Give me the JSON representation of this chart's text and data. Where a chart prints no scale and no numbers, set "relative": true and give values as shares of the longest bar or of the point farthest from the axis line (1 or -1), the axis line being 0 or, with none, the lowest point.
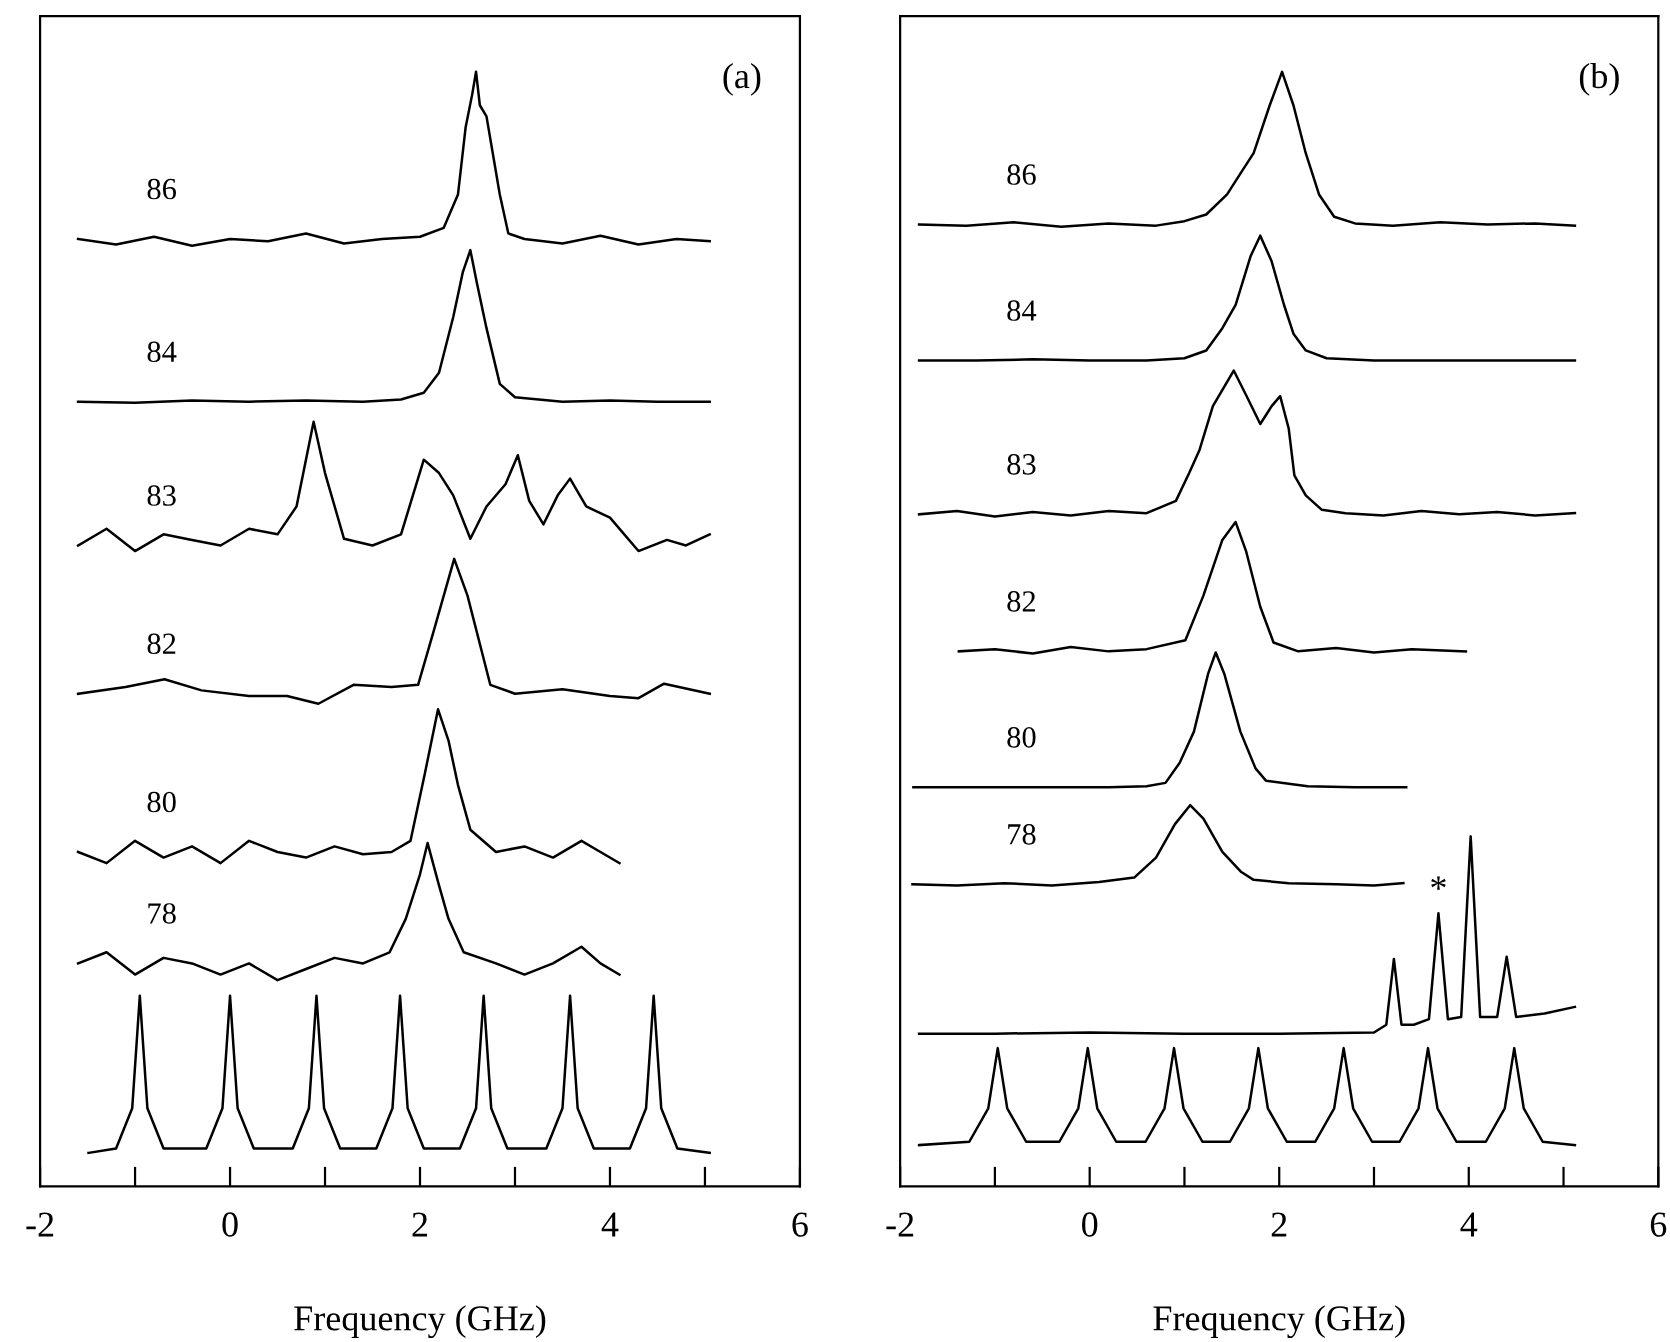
{
  "chart_data": [
    {
      "type": "line",
      "relative": true,
      "xlabel": "Frequency (GHz)",
      "xlim": [
        -2,
        6
      ],
      "xticks": [
        -2,
        {
          "value": -1,
          "label": null
        },
        0,
        {
          "value": 1,
          "label": null
        },
        2,
        {
          "value": 3,
          "label": null
        },
        4,
        {
          "value": 5,
          "label": null
        },
        6
      ],
      "tick_labels": "x",
      "grid": false,
      "legend": false,
      "marker": "none",
      "line_style": "solid",
      "annotations": [
        "(a)"
      ],
      "series": [
        {
          "name": "86",
          "color": "#000000",
          "x": [
            -1.6,
            -1.2,
            -0.8,
            -0.4,
            0,
            0.4,
            0.8,
            1.2,
            1.6,
            2.0,
            2.25,
            2.35,
            2.4,
            2.48,
            2.55,
            2.59,
            2.63,
            2.7,
            2.78,
            2.84,
            2.93,
            3.1,
            3.5,
            3.9,
            4.3,
            4.7,
            5.05
          ],
          "values": [
            0.85,
            0.845,
            0.852,
            0.844,
            0.85,
            0.848,
            0.855,
            0.846,
            0.85,
            0.852,
            0.86,
            0.88,
            0.89,
            0.95,
            0.98,
            1.0,
            0.97,
            0.96,
            0.92,
            0.89,
            0.855,
            0.85,
            0.846,
            0.853,
            0.845,
            0.85,
            0.848
          ]
        },
        {
          "name": "84",
          "color": "#000000",
          "x": [
            -1.6,
            -1.0,
            -0.4,
            0.2,
            0.8,
            1.4,
            1.8,
            2.04,
            2.2,
            2.35,
            2.45,
            2.53,
            2.6,
            2.7,
            2.84,
            3.0,
            3.5,
            4.0,
            4.5,
            5.05
          ],
          "values": [
            0.704,
            0.703,
            0.705,
            0.704,
            0.705,
            0.704,
            0.706,
            0.712,
            0.73,
            0.78,
            0.82,
            0.84,
            0.81,
            0.77,
            0.72,
            0.708,
            0.704,
            0.705,
            0.704,
            0.704
          ]
        },
        {
          "name": "83",
          "color": "#000000",
          "x": [
            -1.6,
            -1.3,
            -1.0,
            -0.7,
            -0.4,
            -0.1,
            0.2,
            0.5,
            0.7,
            0.88,
            1.0,
            1.2,
            1.5,
            1.8,
            2.04,
            2.2,
            2.35,
            2.53,
            2.7,
            2.9,
            3.03,
            3.15,
            3.3,
            3.45,
            3.58,
            3.75,
            4.0,
            4.3,
            4.6,
            4.8,
            5.05
          ],
          "values": [
            0.575,
            0.59,
            0.57,
            0.585,
            0.58,
            0.575,
            0.59,
            0.585,
            0.61,
            0.686,
            0.64,
            0.581,
            0.575,
            0.585,
            0.652,
            0.64,
            0.62,
            0.581,
            0.61,
            0.63,
            0.656,
            0.615,
            0.594,
            0.62,
            0.635,
            0.61,
            0.6,
            0.57,
            0.58,
            0.575,
            0.585
          ]
        },
        {
          "name": "82",
          "color": "#000000",
          "x": [
            -1.6,
            -1.1,
            -0.69,
            -0.3,
            0.2,
            0.6,
            0.93,
            1.3,
            1.7,
            1.98,
            2.15,
            2.36,
            2.5,
            2.74,
            3.0,
            3.5,
            4.0,
            4.3,
            4.57,
            5.05
          ],
          "values": [
            0.442,
            0.448,
            0.455,
            0.445,
            0.44,
            0.44,
            0.433,
            0.45,
            0.448,
            0.45,
            0.5,
            0.563,
            0.53,
            0.45,
            0.442,
            0.446,
            0.44,
            0.438,
            0.451,
            0.442
          ]
        },
        {
          "name": "80",
          "color": "#000000",
          "x": [
            -1.6,
            -1.3,
            -1.0,
            -0.7,
            -0.4,
            -0.1,
            0.2,
            0.5,
            0.8,
            1.1,
            1.4,
            1.7,
            1.9,
            2.05,
            2.19,
            2.3,
            2.4,
            2.53,
            2.8,
            3.1,
            3.4,
            3.7,
            3.9,
            4.1
          ],
          "values": [
            0.3,
            0.29,
            0.31,
            0.295,
            0.305,
            0.29,
            0.31,
            0.3,
            0.295,
            0.305,
            0.298,
            0.3,
            0.31,
            0.37,
            0.428,
            0.4,
            0.36,
            0.32,
            0.3,
            0.305,
            0.295,
            0.31,
            0.3,
            0.29
          ]
        },
        {
          "name": "78",
          "color": "#000000",
          "x": [
            -1.6,
            -1.3,
            -1.0,
            -0.7,
            -0.4,
            -0.1,
            0.2,
            0.5,
            0.8,
            1.1,
            1.4,
            1.68,
            1.85,
            2.0,
            2.08,
            2.2,
            2.3,
            2.46,
            2.8,
            3.1,
            3.4,
            3.7,
            3.9,
            4.1
          ],
          "values": [
            0.2,
            0.21,
            0.19,
            0.205,
            0.2,
            0.19,
            0.2,
            0.185,
            0.195,
            0.205,
            0.2,
            0.21,
            0.24,
            0.28,
            0.308,
            0.27,
            0.24,
            0.21,
            0.2,
            0.19,
            0.2,
            0.215,
            0.2,
            0.19
          ]
        },
        {
          "color": "#000000",
          "x": [
            -1.49,
            -1.2,
            -1.03,
            -0.95,
            -0.87,
            -0.7,
            -0.25,
            -0.08,
            0,
            0.08,
            0.25,
            0.66,
            0.83,
            0.91,
            0.99,
            1.16,
            1.54,
            1.71,
            1.79,
            1.87,
            2.04,
            2.42,
            2.59,
            2.67,
            2.75,
            2.92,
            3.33,
            3.5,
            3.58,
            3.66,
            3.83,
            4.21,
            4.38,
            4.46,
            4.54,
            4.71,
            5.05
          ],
          "values": [
            0.03,
            0.034,
            0.07,
            0.171,
            0.07,
            0.034,
            0.034,
            0.07,
            0.171,
            0.07,
            0.034,
            0.034,
            0.07,
            0.171,
            0.07,
            0.034,
            0.034,
            0.07,
            0.171,
            0.07,
            0.034,
            0.034,
            0.07,
            0.171,
            0.07,
            0.034,
            0.034,
            0.07,
            0.171,
            0.07,
            0.034,
            0.034,
            0.07,
            0.171,
            0.07,
            0.034,
            0.03
          ]
        }
      ]
    },
    {
      "type": "line",
      "relative": true,
      "xlabel": "Frequency (GHz)",
      "xlim": [
        -2,
        6
      ],
      "xticks": [
        -2,
        {
          "value": -1,
          "label": null
        },
        0,
        {
          "value": 1,
          "label": null
        },
        2,
        {
          "value": 3,
          "label": null
        },
        4,
        {
          "value": 5,
          "label": null
        },
        6
      ],
      "tick_labels": "x",
      "grid": false,
      "legend": false,
      "marker": "none",
      "line_style": "solid",
      "annotations": [
        "(b)",
        {
          "text": "*",
          "x": 3.68,
          "y": 0.245
        }
      ],
      "series": [
        {
          "name": "86",
          "color": "#000000",
          "x": [
            -1.8,
            -1.3,
            -0.8,
            -0.3,
            0.2,
            0.7,
            1.0,
            1.23,
            1.45,
            1.6,
            1.73,
            1.9,
            2.03,
            2.15,
            2.28,
            2.42,
            2.58,
            2.8,
            3.2,
            3.7,
            4.2,
            4.7,
            5.12
          ],
          "values": [
            0.863,
            0.862,
            0.865,
            0.861,
            0.864,
            0.862,
            0.866,
            0.872,
            0.89,
            0.91,
            0.927,
            0.97,
            1.0,
            0.97,
            0.927,
            0.89,
            0.87,
            0.864,
            0.862,
            0.865,
            0.863,
            0.864,
            0.862
          ]
        },
        {
          "name": "84",
          "color": "#000000",
          "x": [
            -1.8,
            -1.2,
            -0.6,
            0,
            0.6,
            1.0,
            1.23,
            1.4,
            1.54,
            1.7,
            1.8,
            1.92,
            2.05,
            2.15,
            2.28,
            2.5,
            3.0,
            3.6,
            4.2,
            5.12
          ],
          "values": [
            0.741,
            0.741,
            0.742,
            0.741,
            0.741,
            0.743,
            0.75,
            0.77,
            0.791,
            0.835,
            0.853,
            0.83,
            0.791,
            0.765,
            0.75,
            0.743,
            0.741,
            0.741,
            0.741,
            0.741
          ]
        },
        {
          "name": "83",
          "color": "#000000",
          "x": [
            -1.8,
            -1.4,
            -1.0,
            -0.6,
            -0.2,
            0.2,
            0.6,
            0.91,
            1.05,
            1.16,
            1.3,
            1.52,
            1.65,
            1.8,
            1.92,
            2.01,
            2.1,
            2.16,
            2.28,
            2.45,
            2.7,
            3.1,
            3.5,
            3.9,
            4.3,
            4.7,
            5.12
          ],
          "values": [
            0.603,
            0.606,
            0.601,
            0.605,
            0.602,
            0.606,
            0.604,
            0.615,
            0.64,
            0.661,
            0.7,
            0.732,
            0.71,
            0.684,
            0.7,
            0.709,
            0.68,
            0.638,
            0.62,
            0.607,
            0.604,
            0.602,
            0.606,
            0.603,
            0.605,
            0.602,
            0.604
          ]
        },
        {
          "name": "82",
          "color": "#000000",
          "x": [
            -1.38,
            -1.0,
            -0.6,
            -0.2,
            0.2,
            0.6,
            1.01,
            1.2,
            1.4,
            1.54,
            1.65,
            1.8,
            1.94,
            2.2,
            2.6,
            3.0,
            3.4,
            3.97
          ],
          "values": [
            0.48,
            0.482,
            0.478,
            0.484,
            0.48,
            0.482,
            0.49,
            0.53,
            0.58,
            0.596,
            0.57,
            0.52,
            0.488,
            0.48,
            0.483,
            0.479,
            0.482,
            0.48
          ]
        },
        {
          "name": "80",
          "color": "#000000",
          "x": [
            -1.86,
            -1.2,
            -0.5,
            0.2,
            0.6,
            0.8,
            0.95,
            1.1,
            1.25,
            1.33,
            1.42,
            1.59,
            1.75,
            1.86,
            2.3,
            2.8,
            3.34
          ],
          "values": [
            0.358,
            0.358,
            0.358,
            0.358,
            0.359,
            0.362,
            0.38,
            0.408,
            0.46,
            0.479,
            0.46,
            0.408,
            0.375,
            0.364,
            0.359,
            0.358,
            0.358
          ]
        },
        {
          "name": "78",
          "color": "#000000",
          "x": [
            -1.87,
            -1.4,
            -0.9,
            -0.4,
            0.1,
            0.47,
            0.7,
            0.9,
            1.06,
            1.2,
            1.4,
            1.6,
            1.73,
            2.1,
            2.6,
            3.0,
            3.31
          ],
          "values": [
            0.271,
            0.27,
            0.272,
            0.27,
            0.273,
            0.277,
            0.295,
            0.325,
            0.342,
            0.33,
            0.3,
            0.282,
            0.275,
            0.272,
            0.271,
            0.27,
            0.272
          ]
        },
        {
          "color": "#000000",
          "x": [
            -1.8,
            -1.0,
            0,
            1.0,
            2.0,
            3.0,
            3.13,
            3.21,
            3.29,
            3.42,
            3.58,
            3.68,
            3.78,
            3.92,
            4.02,
            4.12,
            4.3,
            4.4,
            4.5,
            4.8,
            5.12
          ],
          "values": [
            0.137,
            0.137,
            0.138,
            0.137,
            0.137,
            0.138,
            0.145,
            0.204,
            0.145,
            0.145,
            0.15,
            0.245,
            0.15,
            0.152,
            0.314,
            0.152,
            0.152,
            0.206,
            0.152,
            0.155,
            0.161
          ]
        },
        {
          "color": "#000000",
          "x": [
            -1.8,
            -1.27,
            -1.07,
            -0.97,
            -0.87,
            -0.67,
            -0.32,
            -0.12,
            -0.02,
            0.08,
            0.28,
            0.59,
            0.79,
            0.89,
            0.99,
            1.19,
            1.48,
            1.68,
            1.78,
            1.88,
            2.08,
            2.38,
            2.58,
            2.68,
            2.78,
            2.98,
            3.27,
            3.47,
            3.57,
            3.67,
            3.87,
            4.18,
            4.38,
            4.48,
            4.58,
            4.78,
            5.12
          ],
          "values": [
            0.037,
            0.04,
            0.07,
            0.124,
            0.07,
            0.04,
            0.04,
            0.07,
            0.124,
            0.07,
            0.04,
            0.04,
            0.07,
            0.124,
            0.07,
            0.04,
            0.04,
            0.07,
            0.124,
            0.07,
            0.04,
            0.04,
            0.07,
            0.124,
            0.07,
            0.04,
            0.04,
            0.07,
            0.124,
            0.07,
            0.04,
            0.04,
            0.07,
            0.124,
            0.07,
            0.04,
            0.037
          ]
        }
      ]
    }
  ]
}
